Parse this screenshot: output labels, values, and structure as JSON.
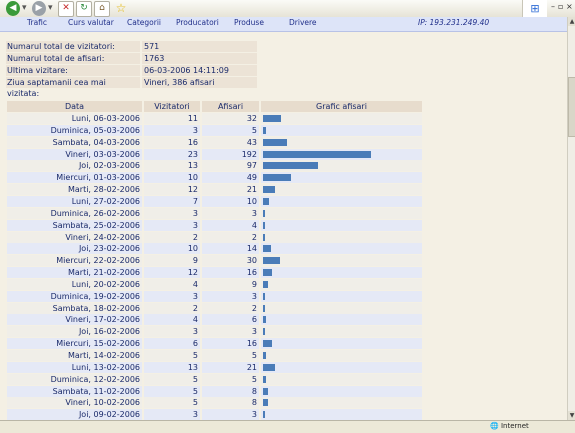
{
  "toolbar": {
    "back_icon": "back-arrow-icon",
    "forward_icon": "forward-arrow-icon",
    "stop_icon": "stop-icon",
    "refresh_icon": "refresh-icon",
    "home_icon": "home-icon",
    "favorites_icon": "star-icon"
  },
  "nav": {
    "items": [
      "Trafic",
      "Curs valutar",
      "Categorii",
      "Producatori",
      "Produse",
      "Drivere"
    ],
    "ip_label": "IP:  193.231.249.40"
  },
  "summary": [
    {
      "label": "Numarul total de vizitatori:",
      "value": "571"
    },
    {
      "label": "Numarul total de afisari:",
      "value": "1763"
    },
    {
      "label": "Ultima vizitare:",
      "value": "06-03-2006 14:11:09"
    },
    {
      "label": "Ziua saptamanii cea mai vizitata:",
      "value": "Vineri, 386 afisari"
    }
  ],
  "table": {
    "headers": [
      "Data",
      "Vizitatori",
      "Afisari",
      "Grafic afisari"
    ],
    "rows": [
      {
        "date": "Luni, 06-03-2006",
        "visitors": 11,
        "views": 32
      },
      {
        "date": "Duminica, 05-03-2006",
        "visitors": 3,
        "views": 5
      },
      {
        "date": "Sambata, 04-03-2006",
        "visitors": 16,
        "views": 43
      },
      {
        "date": "Vineri, 03-03-2006",
        "visitors": 23,
        "views": 192
      },
      {
        "date": "Joi, 02-03-2006",
        "visitors": 13,
        "views": 97
      },
      {
        "date": "Miercuri, 01-03-2006",
        "visitors": 10,
        "views": 49
      },
      {
        "date": "Marti, 28-02-2006",
        "visitors": 12,
        "views": 21
      },
      {
        "date": "Luni, 27-02-2006",
        "visitors": 7,
        "views": 10
      },
      {
        "date": "Duminica, 26-02-2006",
        "visitors": 3,
        "views": 3
      },
      {
        "date": "Sambata, 25-02-2006",
        "visitors": 3,
        "views": 4
      },
      {
        "date": "Vineri, 24-02-2006",
        "visitors": 2,
        "views": 2
      },
      {
        "date": "Joi, 23-02-2006",
        "visitors": 10,
        "views": 14
      },
      {
        "date": "Miercuri, 22-02-2006",
        "visitors": 9,
        "views": 30
      },
      {
        "date": "Marti, 21-02-2006",
        "visitors": 12,
        "views": 16
      },
      {
        "date": "Luni, 20-02-2006",
        "visitors": 4,
        "views": 9
      },
      {
        "date": "Duminica, 19-02-2006",
        "visitors": 3,
        "views": 3
      },
      {
        "date": "Sambata, 18-02-2006",
        "visitors": 2,
        "views": 2
      },
      {
        "date": "Vineri, 17-02-2006",
        "visitors": 4,
        "views": 6
      },
      {
        "date": "Joi, 16-02-2006",
        "visitors": 3,
        "views": 3
      },
      {
        "date": "Miercuri, 15-02-2006",
        "visitors": 6,
        "views": 16
      },
      {
        "date": "Marti, 14-02-2006",
        "visitors": 5,
        "views": 5
      },
      {
        "date": "Luni, 13-02-2006",
        "visitors": 13,
        "views": 21
      },
      {
        "date": "Duminica, 12-02-2006",
        "visitors": 5,
        "views": 5
      },
      {
        "date": "Sambata, 11-02-2006",
        "visitors": 5,
        "views": 8
      },
      {
        "date": "Vineri, 10-02-2006",
        "visitors": 5,
        "views": 8
      },
      {
        "date": "Joi, 09-02-2006",
        "visitors": 3,
        "views": 3
      }
    ],
    "bar_max": 192,
    "bar_color": "#4a7cb8"
  },
  "statusbar": {
    "zone": "Internet"
  }
}
